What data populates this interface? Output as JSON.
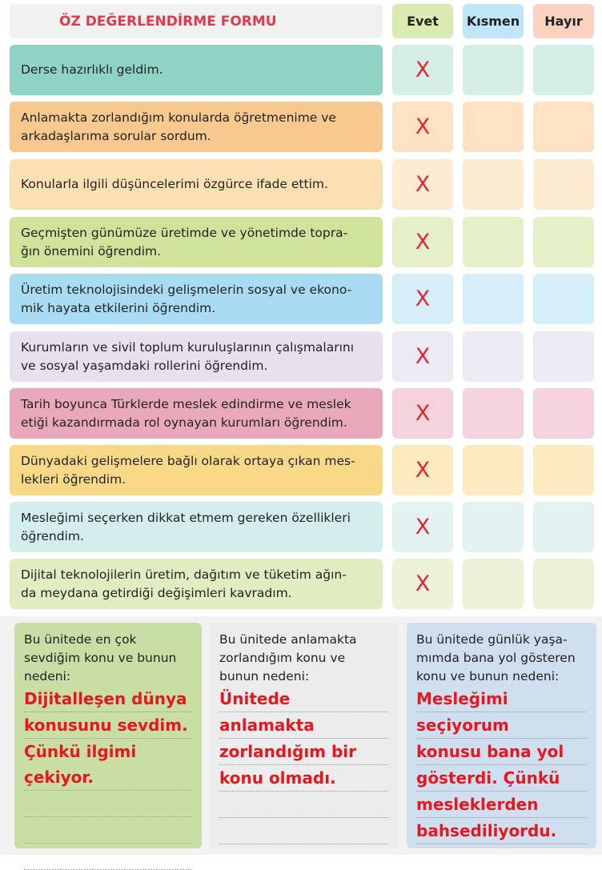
{
  "header": {
    "title": "ÖZ DEĞERLENDİRME FORMU",
    "columns": [
      "Evet",
      "Kısmen",
      "Hayır"
    ]
  },
  "rows": [
    {
      "lines": [
        "Derse hazırlıklı geldim."
      ],
      "mark": "X"
    },
    {
      "lines": [
        "Anlamakta zorlandığım konularda öğretmenime ve",
        "arkadaşlarıma sorular sordum."
      ],
      "mark": "X"
    },
    {
      "lines": [
        "Konularla ilgili düşüncelerimi özgürce ifade ettim."
      ],
      "mark": "X"
    },
    {
      "lines": [
        "Geçmişten günümüze üretimde ve yönetimde topra-",
        "ğın önemini öğrendim."
      ],
      "mark": "X"
    },
    {
      "lines": [
        "Üretim teknolojisindeki gelişmelerin sosyal ve ekono-",
        "mik hayata etkilerini öğrendim."
      ],
      "mark": "X"
    },
    {
      "lines": [
        "Kurumların ve sivil toplum kuruluşlarının çalışmalarını",
        "ve sosyal yaşamdaki rollerini öğrendim."
      ],
      "mark": "X"
    },
    {
      "lines": [
        "Tarih boyunca Türklerde meslek edindirme ve meslek",
        "etiği kazandırmada rol oynayan kurumları öğrendim."
      ],
      "mark": "X"
    },
    {
      "lines": [
        "Dünyadaki gelişmelere bağlı olarak ortaya çıkan mes-",
        "lekleri öğrendim."
      ],
      "mark": "X"
    },
    {
      "lines": [
        "Mesleğimi seçerken dikkat etmem gereken özellikleri",
        "öğrendim."
      ],
      "mark": "X"
    },
    {
      "lines": [
        "Dijital teknolojilerin üretim, dağıtım ve tüketim ağın-",
        "da meydana getirdiği değişimleri kavradım."
      ],
      "mark": "X"
    }
  ],
  "panels": [
    {
      "prompt": [
        "Bu ünitede en çok",
        "sevdiğim konu ve bunun",
        "nedeni:"
      ],
      "answer": [
        "Dijitalleşen dünya",
        "konusunu sevdim.",
        "Çünkü ilgimi çekiyor."
      ]
    },
    {
      "prompt": [
        "Bu ünitede anlamakta",
        "zorlandığım konu ve",
        "bunun nedeni:"
      ],
      "answer": [
        "Ünitede",
        "anlamakta",
        "zorlandığım bir",
        "konu olmadı."
      ]
    },
    {
      "prompt": [
        "Bu ünitede günlük yaşa-",
        "mımda bana yol gösteren",
        "konu ve bunun nedeni:"
      ],
      "answer": [
        "Mesleğimi",
        "seçiyorum",
        "konusu bana yol",
        "gösterdi. Çünkü",
        "mesleklerden",
        "bahsediliyordu."
      ]
    }
  ]
}
